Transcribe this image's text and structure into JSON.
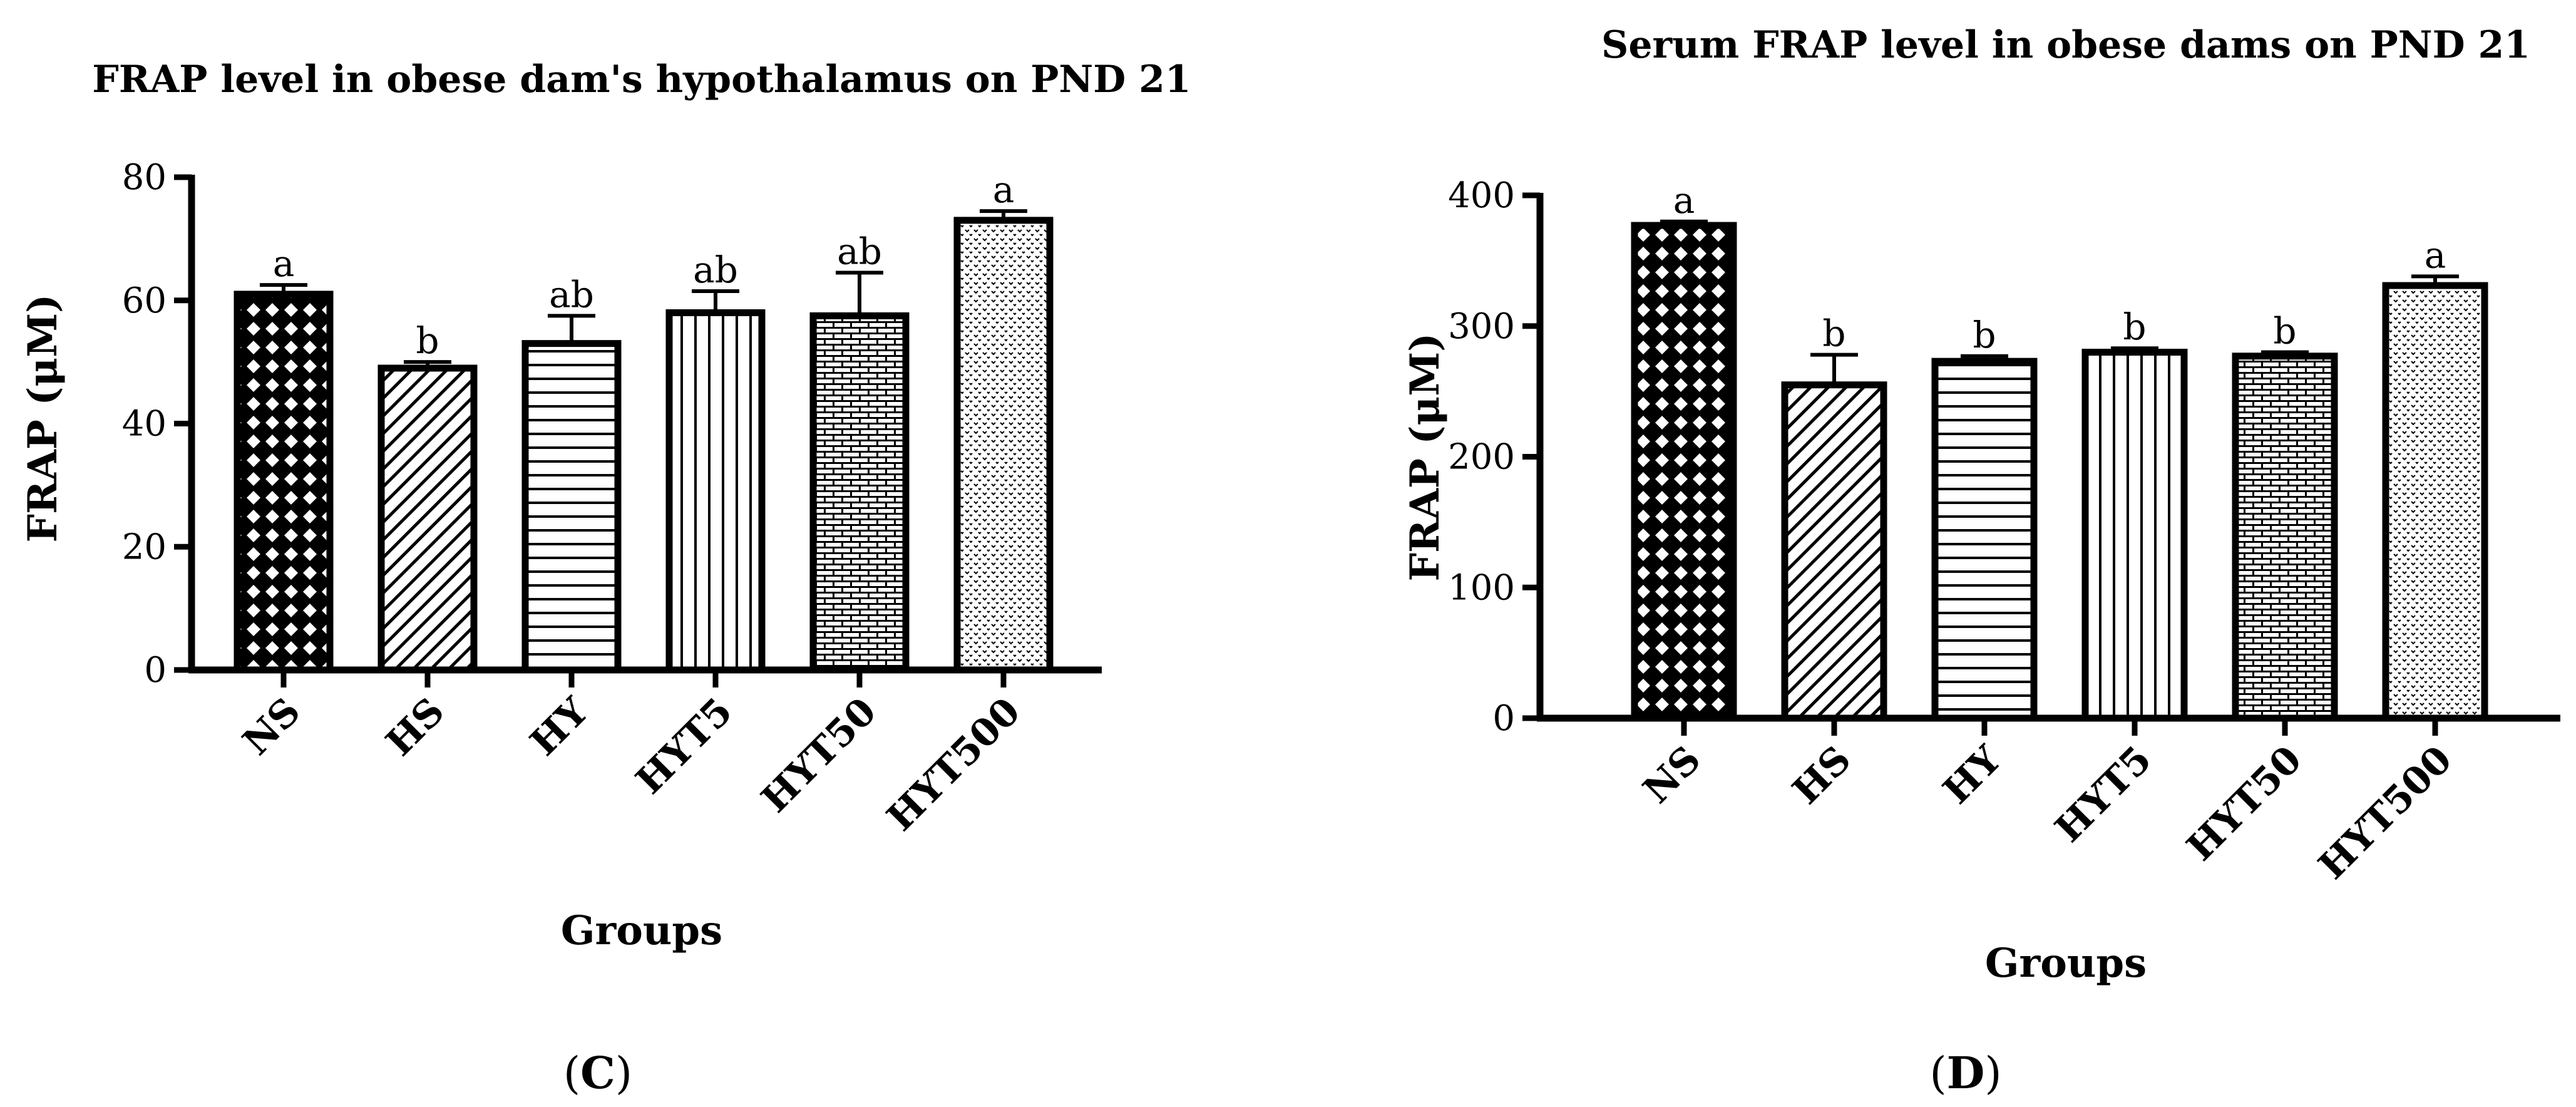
{
  "chart_data": [
    {
      "type": "bar",
      "title": "FRAP level in obese dam's hypothalamus on PND 21",
      "xlabel": "Groups",
      "ylabel": "FRAP (μM)",
      "panel_label": "C",
      "categories": [
        "NS",
        "HS",
        "HY",
        "HYT5",
        "HYT50",
        "HYT500"
      ],
      "values": [
        61,
        49,
        53,
        58,
        57.5,
        73
      ],
      "errors": [
        1.5,
        1.0,
        4.5,
        3.5,
        7.0,
        1.5
      ],
      "significance": [
        "a",
        "b",
        "ab",
        "ab",
        "ab",
        "a"
      ],
      "ylim": [
        0,
        80
      ],
      "yticks": [
        0,
        20,
        40,
        60,
        80
      ],
      "patterns": [
        "crosshatch",
        "diagonal",
        "horizontal",
        "vertical",
        "brick",
        "dots"
      ],
      "grid": false
    },
    {
      "type": "bar",
      "title": "Serum FRAP level in obese dams on PND 21",
      "xlabel": "Groups",
      "ylabel": "FRAP (μM)",
      "panel_label": "D",
      "categories": [
        "NS",
        "HS",
        "HY",
        "HYT5",
        "HYT50",
        "HYT500"
      ],
      "values": [
        377,
        255,
        273,
        280,
        277,
        331
      ],
      "errors": [
        3,
        23,
        4,
        3,
        3,
        7
      ],
      "significance": [
        "a",
        "b",
        "b",
        "b",
        "b",
        "a"
      ],
      "ylim": [
        0,
        400
      ],
      "yticks": [
        0,
        100,
        200,
        300,
        400
      ],
      "patterns": [
        "crosshatch",
        "diagonal",
        "horizontal",
        "vertical",
        "brick",
        "dots"
      ],
      "grid": false
    }
  ]
}
